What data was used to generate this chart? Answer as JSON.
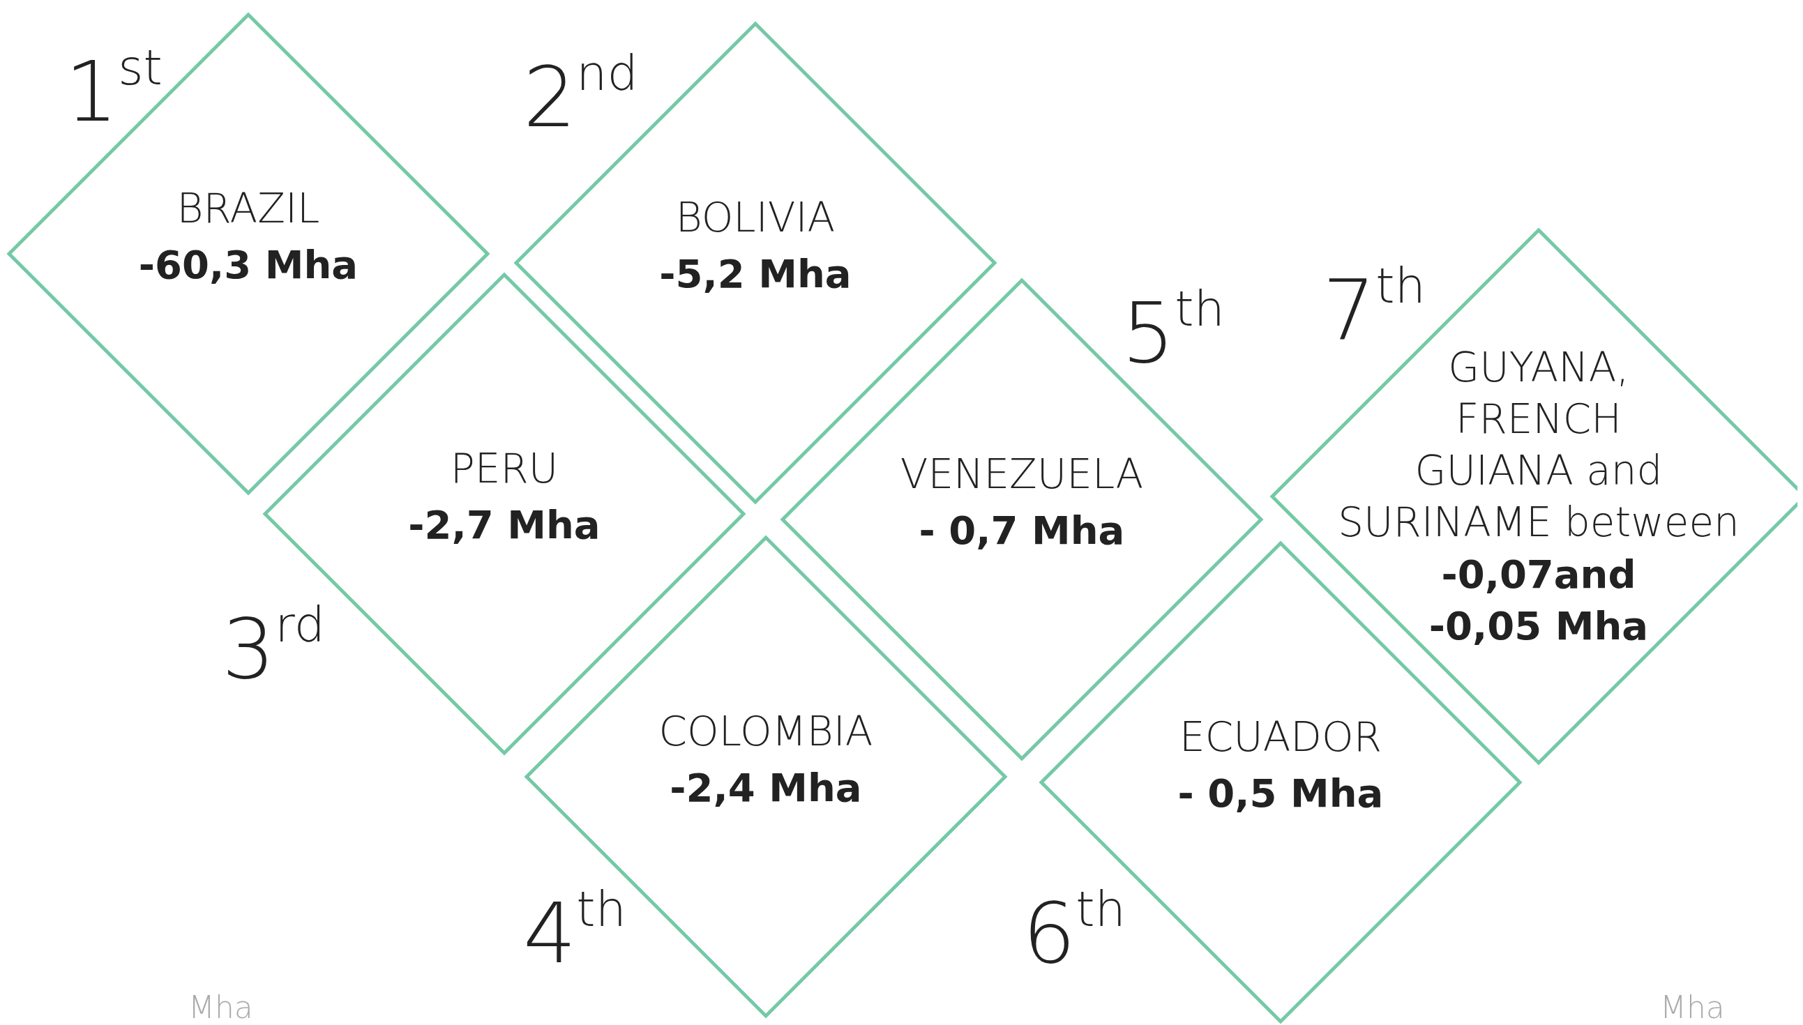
{
  "chart_data": {
    "type": "other",
    "categories": [
      "BRAZIL",
      "BOLIVIA",
      "PERU",
      "COLOMBIA",
      "VENEZUELA",
      "ECUADOR",
      "GUYANA, FRENCH GUIANA and SURINAME between"
    ],
    "values": [
      -60.3,
      -5.2,
      -2.7,
      -2.4,
      -0.7,
      -0.5,
      null
    ],
    "value_labels": [
      "-60,3 Mha",
      "-5,2 Mha",
      "-2,7 Mha",
      "-2,4 Mha",
      "- 0,7 Mha",
      "- 0,5 Mha",
      "-0,07and -0,05 Mha"
    ],
    "color": "#74c9a6",
    "annotations": [
      "1$^{st}$",
      "2$^{nd}$",
      "3$^{rd}$",
      "4$^{th}$",
      "5$^{th}$",
      "6$^{th}$",
      "7$^{th}$",
      "Mha",
      "Mha"
    ]
  }
}
